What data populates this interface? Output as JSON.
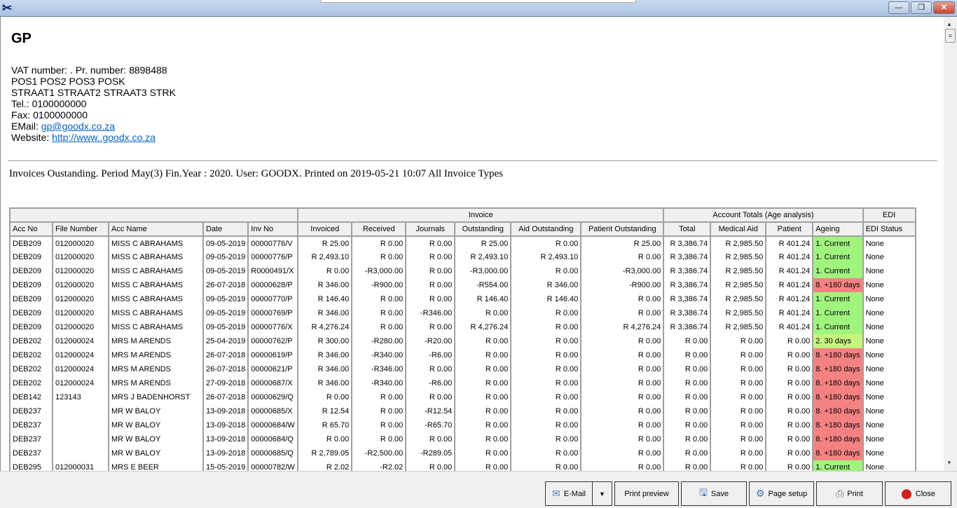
{
  "window": {
    "app_icon": "tools-icon",
    "min": "—",
    "restore": "❐",
    "close": "✕"
  },
  "header": {
    "practice": "GP",
    "lines": [
      "VAT number: . Pr. number: 8898488",
      "POS1 POS2 POS3 POSK",
      "STRAAT1 STRAAT2 STRAAT3 STRK",
      "Tel.: 0100000000",
      "Fax: 0100000000"
    ],
    "email_label": "EMail: ",
    "email": "gp@goodx.co.za",
    "website_label": "Website: ",
    "website": "http://www..goodx.co.za"
  },
  "report_title": "Invoices Oustanding. Period May(3) Fin.Year : 2020. User: GOODX. Printed on 2019-05-21 10:07 All Invoice Types",
  "table": {
    "groups": [
      "",
      "Invoice",
      "Account Totals (Age analysis)",
      "EDI"
    ],
    "columns": [
      "Acc No",
      "File Number",
      "Acc Name",
      "Date",
      "Inv No",
      "Invoiced",
      "Received",
      "Journals",
      "Outstanding",
      "Aid Outstanding",
      "Patient Outstanding",
      "Total",
      "Medical Aid",
      "Patient",
      "Ageing",
      "EDI Status"
    ],
    "rows": [
      [
        "DEB209",
        "012000020",
        "MISS C ABRAHAMS",
        "09-05-2019",
        "00000776/V",
        "R 25.00",
        "R 0.00",
        "R 0.00",
        "R 25.00",
        "R 0.00",
        "R 25.00",
        "R 3,386.74",
        "R 2,985.50",
        "R 401.24",
        "1. Current",
        "None"
      ],
      [
        "DEB209",
        "012000020",
        "MISS C ABRAHAMS",
        "09-05-2019",
        "00000776/P",
        "R 2,493.10",
        "R 0.00",
        "R 0.00",
        "R 2,493.10",
        "R 2,493.10",
        "R 0.00",
        "R 3,386.74",
        "R 2,985.50",
        "R 401.24",
        "1. Current",
        "None"
      ],
      [
        "DEB209",
        "012000020",
        "MISS C ABRAHAMS",
        "09-05-2019",
        "R0000491/X",
        "R 0.00",
        "-R3,000.00",
        "R 0.00",
        "-R3,000.00",
        "R 0.00",
        "-R3,000.00",
        "R 3,386.74",
        "R 2,985.50",
        "R 401.24",
        "1. Current",
        "None"
      ],
      [
        "DEB209",
        "012000020",
        "MISS C ABRAHAMS",
        "26-07-2018",
        "00000628/P",
        "R 346.00",
        "-R900.00",
        "R 0.00",
        "-R554.00",
        "R 346.00",
        "-R900.00",
        "R 3,386.74",
        "R 2,985.50",
        "R 401.24",
        "8. +180 days",
        "None"
      ],
      [
        "DEB209",
        "012000020",
        "MISS C ABRAHAMS",
        "09-05-2019",
        "00000770/P",
        "R 146.40",
        "R 0.00",
        "R 0.00",
        "R 146.40",
        "R 146.40",
        "R 0.00",
        "R 3,386.74",
        "R 2,985.50",
        "R 401.24",
        "1. Current",
        "None"
      ],
      [
        "DEB209",
        "012000020",
        "MISS C ABRAHAMS",
        "09-05-2019",
        "00000769/P",
        "R 346.00",
        "R 0.00",
        "-R346.00",
        "R 0.00",
        "R 0.00",
        "R 0.00",
        "R 3,386.74",
        "R 2,985.50",
        "R 401.24",
        "1. Current",
        "None"
      ],
      [
        "DEB209",
        "012000020",
        "MISS C ABRAHAMS",
        "09-05-2019",
        "00000776/X",
        "R 4,276.24",
        "R 0.00",
        "R 0.00",
        "R 4,276.24",
        "R 0.00",
        "R 4,276.24",
        "R 3,386.74",
        "R 2,985.50",
        "R 401.24",
        "1. Current",
        "None"
      ],
      [
        "DEB202",
        "012000024",
        "MRS M ARENDS",
        "25-04-2019",
        "00000762/P",
        "R 300.00",
        "-R280.00",
        "-R20.00",
        "R 0.00",
        "R 0.00",
        "R 0.00",
        "R 0.00",
        "R 0.00",
        "R 0.00",
        "2. 30 days",
        "None"
      ],
      [
        "DEB202",
        "012000024",
        "MRS M ARENDS",
        "26-07-2018",
        "00000619/P",
        "R 346.00",
        "-R340.00",
        "-R6.00",
        "R 0.00",
        "R 0.00",
        "R 0.00",
        "R 0.00",
        "R 0.00",
        "R 0.00",
        "8. +180 days",
        "None"
      ],
      [
        "DEB202",
        "012000024",
        "MRS M ARENDS",
        "26-07-2018",
        "00000621/P",
        "R 346.00",
        "-R346.00",
        "R 0.00",
        "R 0.00",
        "R 0.00",
        "R 0.00",
        "R 0.00",
        "R 0.00",
        "R 0.00",
        "8. +180 days",
        "None"
      ],
      [
        "DEB202",
        "012000024",
        "MRS M ARENDS",
        "27-09-2018",
        "00000687/X",
        "R 346.00",
        "-R340.00",
        "-R6.00",
        "R 0.00",
        "R 0.00",
        "R 0.00",
        "R 0.00",
        "R 0.00",
        "R 0.00",
        "8. +180 days",
        "None"
      ],
      [
        "DEB142",
        "123143",
        "MRS J BADENHORST",
        "26-07-2018",
        "00000629/Q",
        "R 0.00",
        "R 0.00",
        "R 0.00",
        "R 0.00",
        "R 0.00",
        "R 0.00",
        "R 0.00",
        "R 0.00",
        "R 0.00",
        "8. +180 days",
        "None"
      ],
      [
        "DEB237",
        "",
        "MR W BALOY",
        "13-09-2018",
        "00000685/X",
        "R 12.54",
        "R 0.00",
        "-R12.54",
        "R 0.00",
        "R 0.00",
        "R 0.00",
        "R 0.00",
        "R 0.00",
        "R 0.00",
        "8. +180 days",
        "None"
      ],
      [
        "DEB237",
        "",
        "MR W BALOY",
        "13-09-2018",
        "00000684/W",
        "R 65.70",
        "R 0.00",
        "-R65.70",
        "R 0.00",
        "R 0.00",
        "R 0.00",
        "R 0.00",
        "R 0.00",
        "R 0.00",
        "8. +180 days",
        "None"
      ],
      [
        "DEB237",
        "",
        "MR W BALOY",
        "13-09-2018",
        "00000684/Q",
        "R 0.00",
        "R 0.00",
        "R 0.00",
        "R 0.00",
        "R 0.00",
        "R 0.00",
        "R 0.00",
        "R 0.00",
        "R 0.00",
        "8. +180 days",
        "None"
      ],
      [
        "DEB237",
        "",
        "MR W BALOY",
        "13-09-2018",
        "00000685/Q",
        "R 2,789.05",
        "-R2,500.00",
        "-R289.05",
        "R 0.00",
        "R 0.00",
        "R 0.00",
        "R 0.00",
        "R 0.00",
        "R 0.00",
        "8. +180 days",
        "None"
      ],
      [
        "DEB295",
        "012000031",
        "MRS E BEER",
        "15-05-2019",
        "00000782/W",
        "R 2.02",
        "-R2.02",
        "R 0.00",
        "R 0.00",
        "R 0.00",
        "R 0.00",
        "R 0.00",
        "R 0.00",
        "R 0.00",
        "1. Current",
        "None"
      ]
    ]
  },
  "ageing_colors": {
    "1. Current": "#a0f47e",
    "2. 30 days": "#c4f57e",
    "8. +180 days": "#f48282"
  },
  "buttons": {
    "email": "E-Mail",
    "print_preview": "Print preview",
    "save": "Save",
    "page_setup": "Page setup",
    "print": "Print",
    "close": "Close"
  }
}
